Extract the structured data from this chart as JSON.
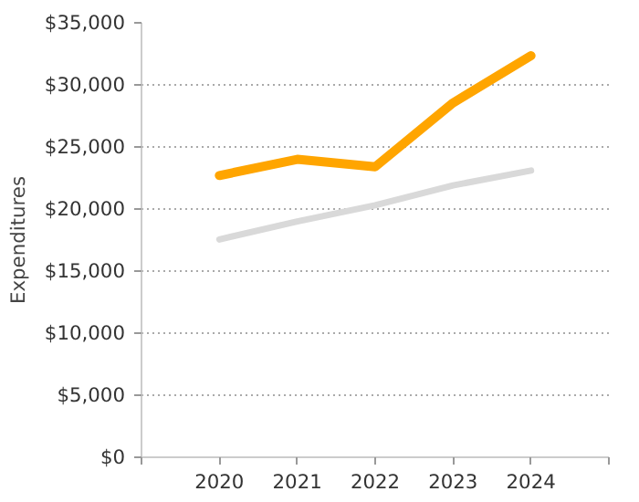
{
  "chart_data": {
    "type": "line",
    "ylabel": "Expenditures",
    "x": [
      2020,
      2021,
      2022,
      2023,
      2024
    ],
    "xlim": [
      2019,
      2025
    ],
    "xticks": [
      {
        "value": 2019,
        "label": null
      },
      2020,
      2021,
      2022,
      2023,
      2024,
      {
        "value": 2025,
        "label": null
      }
    ],
    "ylim": [
      0,
      35000
    ],
    "yticks": [
      {
        "value": 0,
        "label": "$0"
      },
      {
        "value": 5000,
        "label": "$5,000"
      },
      {
        "value": 10000,
        "label": "$10,000"
      },
      {
        "value": 15000,
        "label": "$15,000"
      },
      {
        "value": 20000,
        "label": "$20,000"
      },
      {
        "value": 25000,
        "label": "$25,000"
      },
      {
        "value": 30000,
        "label": "$30,000"
      },
      {
        "value": 35000,
        "label": "$35,000"
      }
    ],
    "grid": "y",
    "line_style": "solid",
    "series": [
      {
        "color": "#d9d9d9",
        "values": [
          17550,
          19000,
          20300,
          21900,
          23100
        ]
      },
      {
        "color": "#ffa500",
        "values": [
          22700,
          24000,
          23400,
          28550,
          32350
        ]
      }
    ]
  }
}
